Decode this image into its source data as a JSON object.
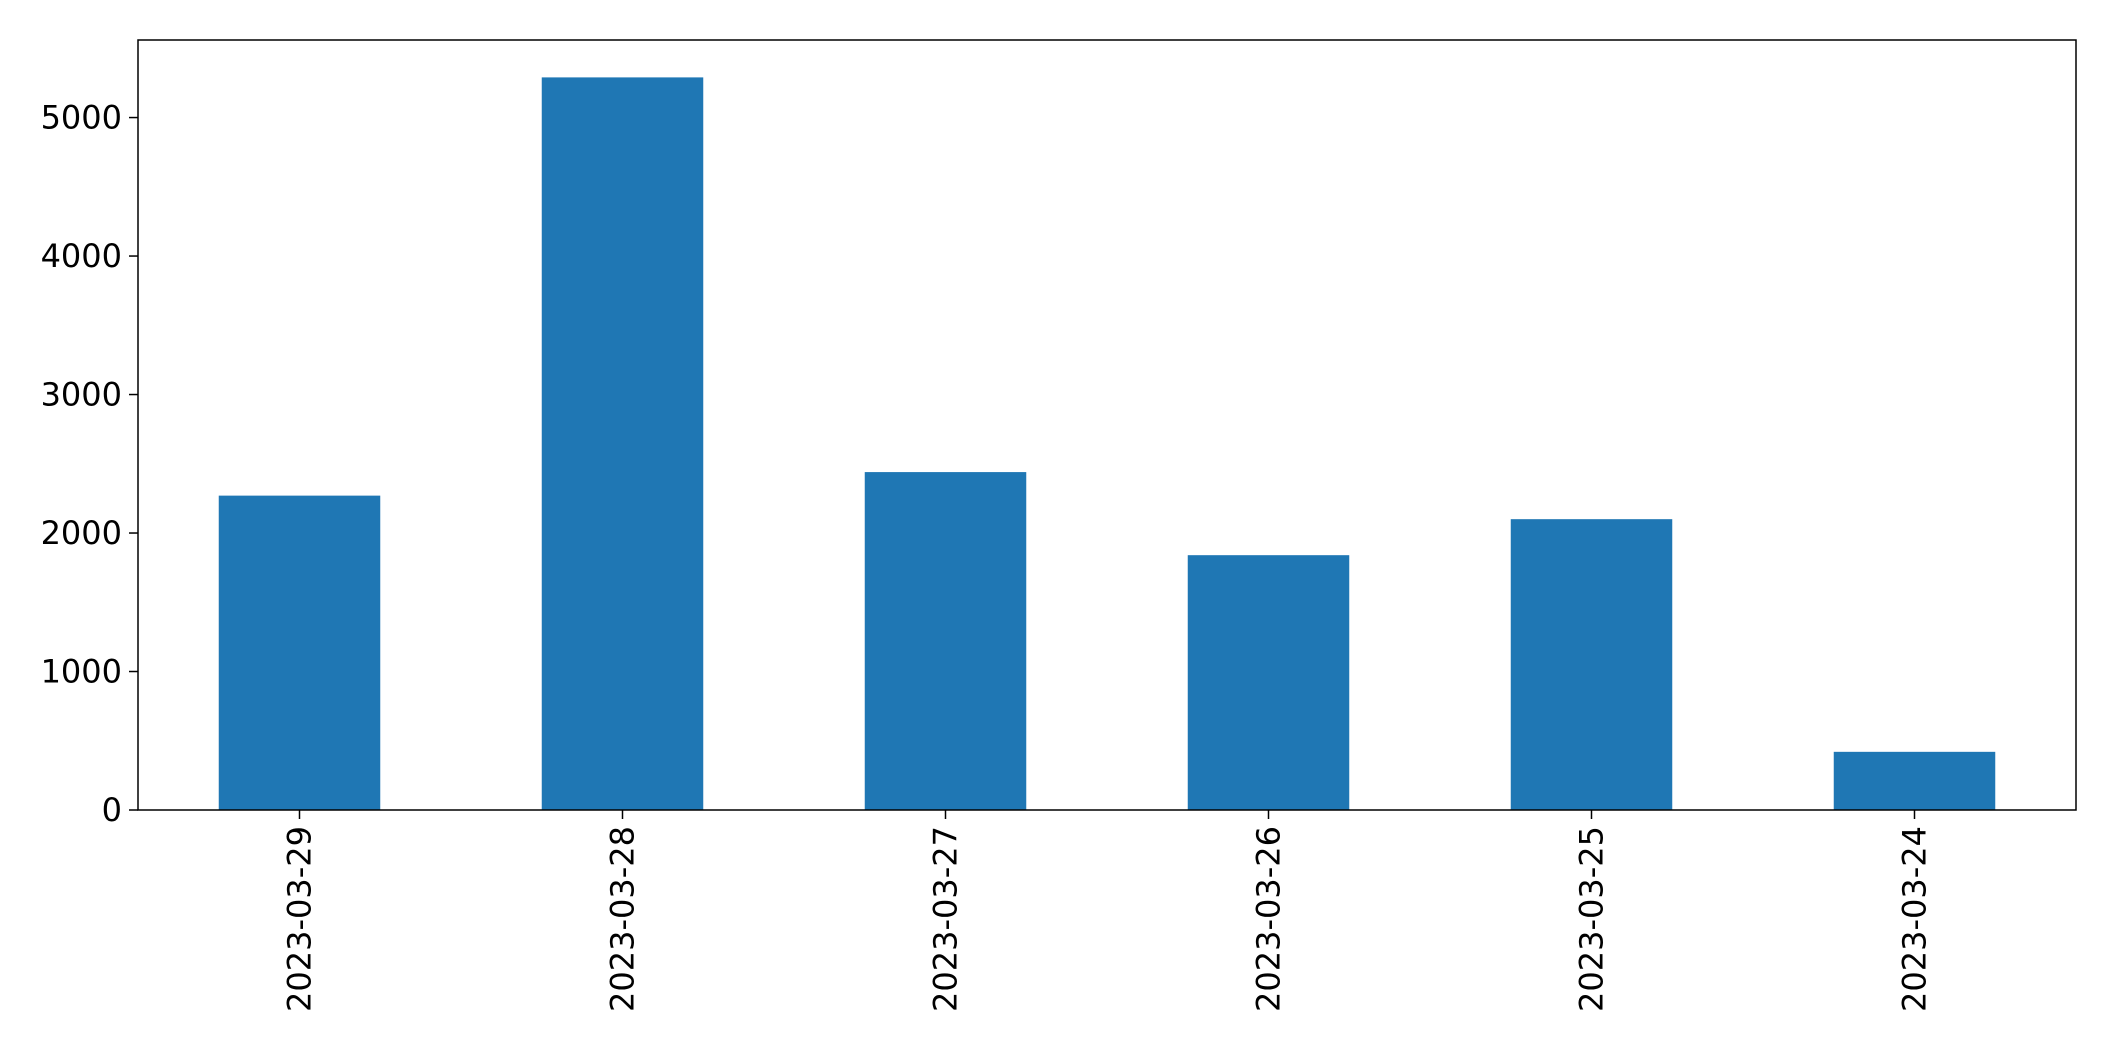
{
  "chart_data": {
    "type": "bar",
    "categories": [
      "2023-03-29",
      "2023-03-28",
      "2023-03-27",
      "2023-03-26",
      "2023-03-25",
      "2023-03-24"
    ],
    "values": [
      2270,
      5290,
      2440,
      1840,
      2100,
      420
    ],
    "title": "",
    "xlabel": "",
    "ylabel": "",
    "ylim": [
      0,
      5560
    ],
    "yticks": [
      0,
      1000,
      2000,
      3000,
      4000,
      5000
    ],
    "grid": false,
    "legend": "none",
    "bar_color": "#1f77b4"
  }
}
